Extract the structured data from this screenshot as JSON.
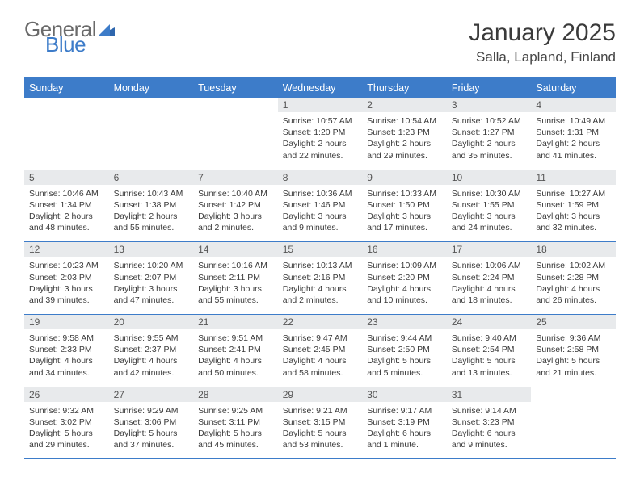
{
  "colors": {
    "brand_blue": "#3d7cc9",
    "header_grey": "#6a6a6a",
    "daynum_bg": "#e8eaec",
    "text": "#3a3a3a"
  },
  "logo": {
    "word1": "General",
    "word2": "Blue"
  },
  "title": "January 2025",
  "location": "Salla, Lapland, Finland",
  "days_of_week": [
    "Sunday",
    "Monday",
    "Tuesday",
    "Wednesday",
    "Thursday",
    "Friday",
    "Saturday"
  ],
  "layout": {
    "weeks": 5,
    "first_weekday_index": 3
  },
  "cells": [
    {
      "n": "",
      "sunrise": "",
      "sunset": "",
      "d1": "",
      "d2": ""
    },
    {
      "n": "",
      "sunrise": "",
      "sunset": "",
      "d1": "",
      "d2": ""
    },
    {
      "n": "",
      "sunrise": "",
      "sunset": "",
      "d1": "",
      "d2": ""
    },
    {
      "n": "1",
      "sunrise": "Sunrise: 10:57 AM",
      "sunset": "Sunset: 1:20 PM",
      "d1": "Daylight: 2 hours",
      "d2": "and 22 minutes."
    },
    {
      "n": "2",
      "sunrise": "Sunrise: 10:54 AM",
      "sunset": "Sunset: 1:23 PM",
      "d1": "Daylight: 2 hours",
      "d2": "and 29 minutes."
    },
    {
      "n": "3",
      "sunrise": "Sunrise: 10:52 AM",
      "sunset": "Sunset: 1:27 PM",
      "d1": "Daylight: 2 hours",
      "d2": "and 35 minutes."
    },
    {
      "n": "4",
      "sunrise": "Sunrise: 10:49 AM",
      "sunset": "Sunset: 1:31 PM",
      "d1": "Daylight: 2 hours",
      "d2": "and 41 minutes."
    },
    {
      "n": "5",
      "sunrise": "Sunrise: 10:46 AM",
      "sunset": "Sunset: 1:34 PM",
      "d1": "Daylight: 2 hours",
      "d2": "and 48 minutes."
    },
    {
      "n": "6",
      "sunrise": "Sunrise: 10:43 AM",
      "sunset": "Sunset: 1:38 PM",
      "d1": "Daylight: 2 hours",
      "d2": "and 55 minutes."
    },
    {
      "n": "7",
      "sunrise": "Sunrise: 10:40 AM",
      "sunset": "Sunset: 1:42 PM",
      "d1": "Daylight: 3 hours",
      "d2": "and 2 minutes."
    },
    {
      "n": "8",
      "sunrise": "Sunrise: 10:36 AM",
      "sunset": "Sunset: 1:46 PM",
      "d1": "Daylight: 3 hours",
      "d2": "and 9 minutes."
    },
    {
      "n": "9",
      "sunrise": "Sunrise: 10:33 AM",
      "sunset": "Sunset: 1:50 PM",
      "d1": "Daylight: 3 hours",
      "d2": "and 17 minutes."
    },
    {
      "n": "10",
      "sunrise": "Sunrise: 10:30 AM",
      "sunset": "Sunset: 1:55 PM",
      "d1": "Daylight: 3 hours",
      "d2": "and 24 minutes."
    },
    {
      "n": "11",
      "sunrise": "Sunrise: 10:27 AM",
      "sunset": "Sunset: 1:59 PM",
      "d1": "Daylight: 3 hours",
      "d2": "and 32 minutes."
    },
    {
      "n": "12",
      "sunrise": "Sunrise: 10:23 AM",
      "sunset": "Sunset: 2:03 PM",
      "d1": "Daylight: 3 hours",
      "d2": "and 39 minutes."
    },
    {
      "n": "13",
      "sunrise": "Sunrise: 10:20 AM",
      "sunset": "Sunset: 2:07 PM",
      "d1": "Daylight: 3 hours",
      "d2": "and 47 minutes."
    },
    {
      "n": "14",
      "sunrise": "Sunrise: 10:16 AM",
      "sunset": "Sunset: 2:11 PM",
      "d1": "Daylight: 3 hours",
      "d2": "and 55 minutes."
    },
    {
      "n": "15",
      "sunrise": "Sunrise: 10:13 AM",
      "sunset": "Sunset: 2:16 PM",
      "d1": "Daylight: 4 hours",
      "d2": "and 2 minutes."
    },
    {
      "n": "16",
      "sunrise": "Sunrise: 10:09 AM",
      "sunset": "Sunset: 2:20 PM",
      "d1": "Daylight: 4 hours",
      "d2": "and 10 minutes."
    },
    {
      "n": "17",
      "sunrise": "Sunrise: 10:06 AM",
      "sunset": "Sunset: 2:24 PM",
      "d1": "Daylight: 4 hours",
      "d2": "and 18 minutes."
    },
    {
      "n": "18",
      "sunrise": "Sunrise: 10:02 AM",
      "sunset": "Sunset: 2:28 PM",
      "d1": "Daylight: 4 hours",
      "d2": "and 26 minutes."
    },
    {
      "n": "19",
      "sunrise": "Sunrise: 9:58 AM",
      "sunset": "Sunset: 2:33 PM",
      "d1": "Daylight: 4 hours",
      "d2": "and 34 minutes."
    },
    {
      "n": "20",
      "sunrise": "Sunrise: 9:55 AM",
      "sunset": "Sunset: 2:37 PM",
      "d1": "Daylight: 4 hours",
      "d2": "and 42 minutes."
    },
    {
      "n": "21",
      "sunrise": "Sunrise: 9:51 AM",
      "sunset": "Sunset: 2:41 PM",
      "d1": "Daylight: 4 hours",
      "d2": "and 50 minutes."
    },
    {
      "n": "22",
      "sunrise": "Sunrise: 9:47 AM",
      "sunset": "Sunset: 2:45 PM",
      "d1": "Daylight: 4 hours",
      "d2": "and 58 minutes."
    },
    {
      "n": "23",
      "sunrise": "Sunrise: 9:44 AM",
      "sunset": "Sunset: 2:50 PM",
      "d1": "Daylight: 5 hours",
      "d2": "and 5 minutes."
    },
    {
      "n": "24",
      "sunrise": "Sunrise: 9:40 AM",
      "sunset": "Sunset: 2:54 PM",
      "d1": "Daylight: 5 hours",
      "d2": "and 13 minutes."
    },
    {
      "n": "25",
      "sunrise": "Sunrise: 9:36 AM",
      "sunset": "Sunset: 2:58 PM",
      "d1": "Daylight: 5 hours",
      "d2": "and 21 minutes."
    },
    {
      "n": "26",
      "sunrise": "Sunrise: 9:32 AM",
      "sunset": "Sunset: 3:02 PM",
      "d1": "Daylight: 5 hours",
      "d2": "and 29 minutes."
    },
    {
      "n": "27",
      "sunrise": "Sunrise: 9:29 AM",
      "sunset": "Sunset: 3:06 PM",
      "d1": "Daylight: 5 hours",
      "d2": "and 37 minutes."
    },
    {
      "n": "28",
      "sunrise": "Sunrise: 9:25 AM",
      "sunset": "Sunset: 3:11 PM",
      "d1": "Daylight: 5 hours",
      "d2": "and 45 minutes."
    },
    {
      "n": "29",
      "sunrise": "Sunrise: 9:21 AM",
      "sunset": "Sunset: 3:15 PM",
      "d1": "Daylight: 5 hours",
      "d2": "and 53 minutes."
    },
    {
      "n": "30",
      "sunrise": "Sunrise: 9:17 AM",
      "sunset": "Sunset: 3:19 PM",
      "d1": "Daylight: 6 hours",
      "d2": "and 1 minute."
    },
    {
      "n": "31",
      "sunrise": "Sunrise: 9:14 AM",
      "sunset": "Sunset: 3:23 PM",
      "d1": "Daylight: 6 hours",
      "d2": "and 9 minutes."
    },
    {
      "n": "",
      "sunrise": "",
      "sunset": "",
      "d1": "",
      "d2": ""
    }
  ]
}
